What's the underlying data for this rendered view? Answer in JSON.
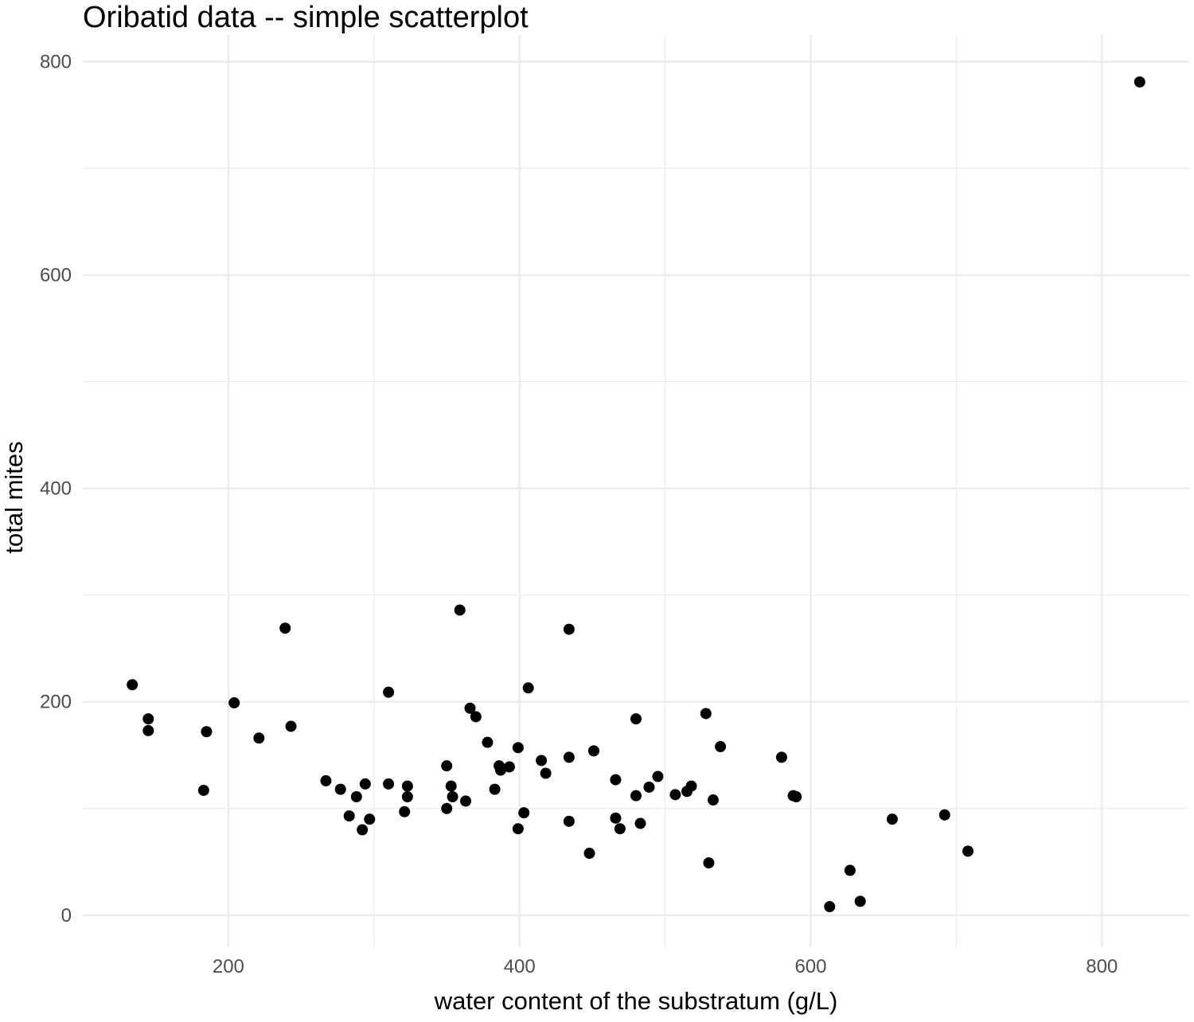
{
  "chart_data": {
    "type": "scatter",
    "title": "Oribatid data -- simple scatterplot",
    "xlabel": "water content of the substratum (g/L)",
    "ylabel": "total mites",
    "xlim": [
      100,
      860
    ],
    "ylim": [
      -30,
      825
    ],
    "x_ticks": [
      200,
      400,
      600,
      800
    ],
    "y_ticks": [
      0,
      200,
      400,
      600,
      800
    ],
    "grid": true,
    "legend": "none",
    "point_color": "#000000",
    "points": [
      {
        "x": 134,
        "y": 216
      },
      {
        "x": 145,
        "y": 184
      },
      {
        "x": 145,
        "y": 173
      },
      {
        "x": 183,
        "y": 117
      },
      {
        "x": 185,
        "y": 172
      },
      {
        "x": 204,
        "y": 199
      },
      {
        "x": 221,
        "y": 166
      },
      {
        "x": 239,
        "y": 269
      },
      {
        "x": 243,
        "y": 177
      },
      {
        "x": 267,
        "y": 126
      },
      {
        "x": 277,
        "y": 118
      },
      {
        "x": 283,
        "y": 93
      },
      {
        "x": 288,
        "y": 111
      },
      {
        "x": 292,
        "y": 80
      },
      {
        "x": 294,
        "y": 123
      },
      {
        "x": 297,
        "y": 90
      },
      {
        "x": 310,
        "y": 209
      },
      {
        "x": 310,
        "y": 123
      },
      {
        "x": 321,
        "y": 97
      },
      {
        "x": 323,
        "y": 121
      },
      {
        "x": 323,
        "y": 111
      },
      {
        "x": 350,
        "y": 140
      },
      {
        "x": 350,
        "y": 100
      },
      {
        "x": 353,
        "y": 121
      },
      {
        "x": 354,
        "y": 111
      },
      {
        "x": 359,
        "y": 286
      },
      {
        "x": 363,
        "y": 107
      },
      {
        "x": 366,
        "y": 194
      },
      {
        "x": 370,
        "y": 186
      },
      {
        "x": 378,
        "y": 162
      },
      {
        "x": 383,
        "y": 118
      },
      {
        "x": 386,
        "y": 140
      },
      {
        "x": 387,
        "y": 136
      },
      {
        "x": 393,
        "y": 139
      },
      {
        "x": 399,
        "y": 157
      },
      {
        "x": 399,
        "y": 81
      },
      {
        "x": 403,
        "y": 96
      },
      {
        "x": 406,
        "y": 213
      },
      {
        "x": 415,
        "y": 145
      },
      {
        "x": 418,
        "y": 133
      },
      {
        "x": 434,
        "y": 268
      },
      {
        "x": 434,
        "y": 148
      },
      {
        "x": 434,
        "y": 88
      },
      {
        "x": 448,
        "y": 58
      },
      {
        "x": 451,
        "y": 154
      },
      {
        "x": 466,
        "y": 127
      },
      {
        "x": 466,
        "y": 91
      },
      {
        "x": 469,
        "y": 81
      },
      {
        "x": 480,
        "y": 184
      },
      {
        "x": 480,
        "y": 112
      },
      {
        "x": 483,
        "y": 86
      },
      {
        "x": 489,
        "y": 120
      },
      {
        "x": 495,
        "y": 130
      },
      {
        "x": 507,
        "y": 113
      },
      {
        "x": 515,
        "y": 116
      },
      {
        "x": 518,
        "y": 121
      },
      {
        "x": 528,
        "y": 189
      },
      {
        "x": 530,
        "y": 49
      },
      {
        "x": 533,
        "y": 108
      },
      {
        "x": 538,
        "y": 158
      },
      {
        "x": 580,
        "y": 148
      },
      {
        "x": 588,
        "y": 112
      },
      {
        "x": 590,
        "y": 111
      },
      {
        "x": 613,
        "y": 8
      },
      {
        "x": 627,
        "y": 42
      },
      {
        "x": 634,
        "y": 13
      },
      {
        "x": 656,
        "y": 90
      },
      {
        "x": 692,
        "y": 94
      },
      {
        "x": 708,
        "y": 60
      },
      {
        "x": 826,
        "y": 781
      }
    ]
  }
}
